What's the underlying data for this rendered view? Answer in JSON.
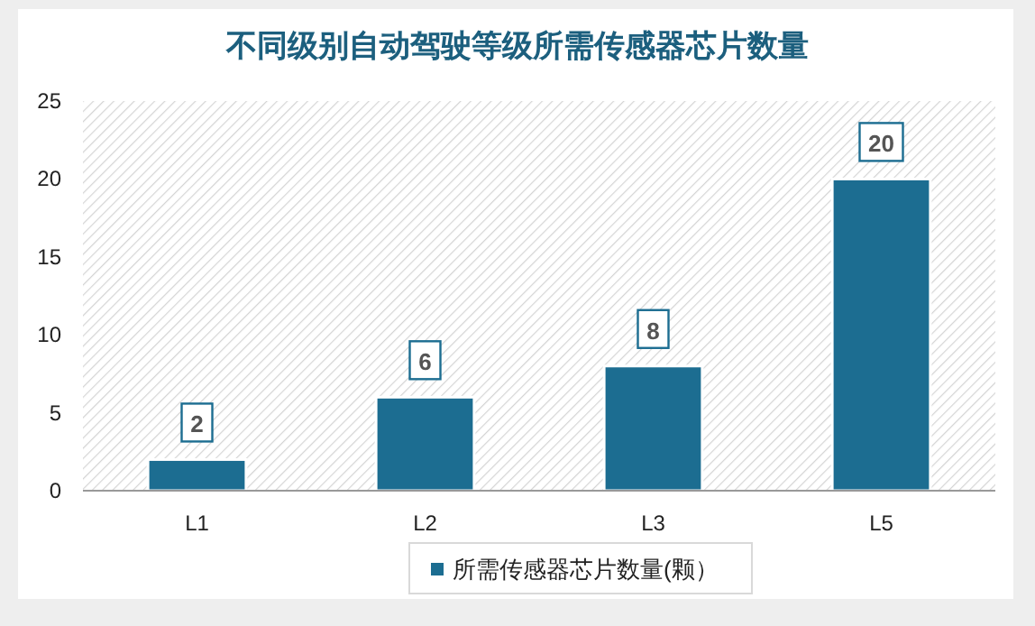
{
  "chart_data": {
    "type": "bar",
    "title": "不同级别自动驾驶等级所需传感器芯片数量",
    "categories": [
      "L1",
      "L2",
      "L3",
      "L5"
    ],
    "series": [
      {
        "name": "所需传感器芯片数量(颗）",
        "color": "#1c6d91",
        "values": [
          2,
          6,
          8,
          20
        ]
      }
    ],
    "ylim": [
      0,
      25
    ],
    "yticks": [
      0,
      5,
      10,
      15,
      20,
      25
    ],
    "data_labels": true,
    "legend": "bottom",
    "grid": false
  }
}
